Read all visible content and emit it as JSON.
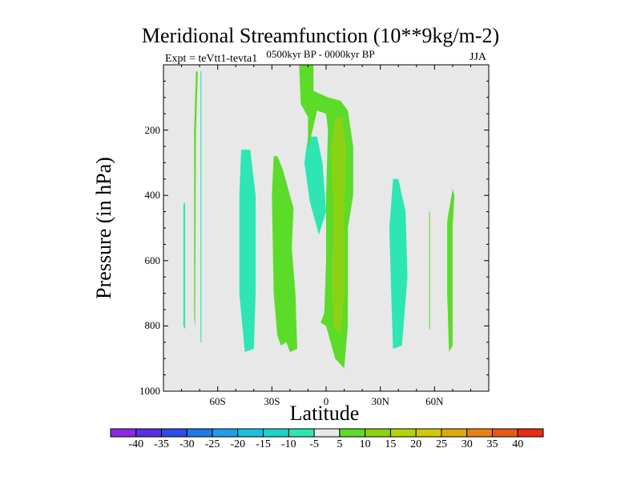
{
  "chart_data": {
    "type": "contour",
    "title": "Meridional Streamfunction (10**9kg/m-2)",
    "subtitle": "0500kyr BP - 0000kyr BP",
    "left_string": "Expt = teVtt1-tevta1",
    "right_string": "JJA",
    "xlabel": "Latitude",
    "ylabel": "Pressure (in hPa)",
    "xlim": [
      -90,
      90
    ],
    "ylim": [
      1000,
      0
    ],
    "x_ticks": [
      {
        "value": -60,
        "label": "60S"
      },
      {
        "value": -30,
        "label": "30S"
      },
      {
        "value": 0,
        "label": "0"
      },
      {
        "value": 30,
        "label": "30N"
      },
      {
        "value": 60,
        "label": "60N"
      }
    ],
    "y_ticks": [
      {
        "value": 200,
        "label": "200"
      },
      {
        "value": 400,
        "label": "400"
      },
      {
        "value": 600,
        "label": "600"
      },
      {
        "value": 800,
        "label": "800"
      },
      {
        "value": 1000,
        "label": "1000"
      }
    ],
    "background_level": "-5 to 5",
    "colorbar": {
      "labels": [
        "-40",
        "-35",
        "-30",
        "-25",
        "-20",
        "-15",
        "-10",
        "-5",
        "5",
        "10",
        "15",
        "20",
        "25",
        "30",
        "35",
        "40"
      ],
      "colors": [
        "#8a2be2",
        "#5a2ee0",
        "#2e4ce6",
        "#1e78e6",
        "#1e9ee6",
        "#1ebee0",
        "#1ed2c8",
        "#2ee6b4",
        "#e8e8e8",
        "#5adc28",
        "#8cd214",
        "#b4d20a",
        "#d2c80a",
        "#dcaa0a",
        "#e68214",
        "#e65a14",
        "#e62d14"
      ]
    },
    "regions": [
      {
        "id": "sh-polar-neg",
        "level": -10,
        "color": "#2ee6b4",
        "points": [
          [
            -79,
            430
          ],
          [
            -79,
            800
          ],
          [
            -78,
            810
          ],
          [
            -78,
            420
          ]
        ]
      },
      {
        "id": "sh-line-pos",
        "level": 5,
        "color": "#5adc28",
        "points": [
          [
            -72,
            20
          ],
          [
            -73,
            200
          ],
          [
            -73,
            780
          ],
          [
            -72.5,
            800
          ],
          [
            -72,
            200
          ],
          [
            -71,
            20
          ]
        ]
      },
      {
        "id": "sh-thin-neg",
        "level": -10,
        "color": "#2ee6b4",
        "points": [
          [
            -69.5,
            20
          ],
          [
            -69.5,
            850
          ],
          [
            -69,
            850
          ],
          [
            -69,
            20
          ]
        ]
      },
      {
        "id": "sh-mid-neg",
        "level": -10,
        "color": "#2ee6b4",
        "points": [
          [
            -47,
            260
          ],
          [
            -48,
            400
          ],
          [
            -48,
            700
          ],
          [
            -45,
            880
          ],
          [
            -40,
            870
          ],
          [
            -39,
            700
          ],
          [
            -39,
            400
          ],
          [
            -42,
            260
          ]
        ]
      },
      {
        "id": "sh-sub-pos",
        "level": 5,
        "color": "#5adc28",
        "points": [
          [
            -29,
            280
          ],
          [
            -30,
            400
          ],
          [
            -29,
            700
          ],
          [
            -27,
            830
          ],
          [
            -25,
            860
          ],
          [
            -22,
            850
          ],
          [
            -20,
            880
          ],
          [
            -16,
            870
          ],
          [
            -17,
            700
          ],
          [
            -19,
            560
          ],
          [
            -18,
            440
          ],
          [
            -24,
            320
          ],
          [
            -27,
            280
          ]
        ]
      },
      {
        "id": "sh-trop-neg",
        "level": -10,
        "color": "#2ee6b4",
        "points": [
          [
            -10,
            220
          ],
          [
            -12,
            300
          ],
          [
            -9,
            420
          ],
          [
            -4,
            520
          ],
          [
            0,
            450
          ],
          [
            -2,
            300
          ],
          [
            -5,
            220
          ]
        ]
      },
      {
        "id": "eq-pos",
        "level": 5,
        "color": "#5adc28",
        "points": [
          [
            -15,
            -10
          ],
          [
            -14,
            120
          ],
          [
            -10,
            160
          ],
          [
            -10,
            260
          ],
          [
            -5,
            140
          ],
          [
            0,
            150
          ],
          [
            1,
            200
          ],
          [
            0,
            400
          ],
          [
            0,
            600
          ],
          [
            -1,
            760
          ],
          [
            -3,
            790
          ],
          [
            0,
            800
          ],
          [
            5,
            900
          ],
          [
            10,
            930
          ],
          [
            12,
            800
          ],
          [
            12,
            500
          ],
          [
            15,
            400
          ],
          [
            15,
            250
          ],
          [
            12,
            140
          ],
          [
            8,
            110
          ],
          [
            1,
            100
          ],
          [
            -7,
            80
          ],
          [
            -7,
            -10
          ]
        ]
      },
      {
        "id": "eq-core",
        "level": 10,
        "color": "#8cd214",
        "points": [
          [
            5,
            160
          ],
          [
            3,
            250
          ],
          [
            4,
            500
          ],
          [
            3,
            650
          ],
          [
            4,
            800
          ],
          [
            8,
            830
          ],
          [
            10,
            700
          ],
          [
            10,
            450
          ],
          [
            11,
            250
          ],
          [
            9,
            160
          ]
        ]
      },
      {
        "id": "nh-sub-neg",
        "level": -10,
        "color": "#2ee6b4",
        "points": [
          [
            37,
            350
          ],
          [
            35,
            500
          ],
          [
            36,
            700
          ],
          [
            37,
            870
          ],
          [
            42,
            860
          ],
          [
            45,
            650
          ],
          [
            44,
            450
          ],
          [
            40,
            350
          ]
        ]
      },
      {
        "id": "nh-thin-pos",
        "level": 5,
        "color": "#5adc28",
        "points": [
          [
            57,
            450
          ],
          [
            57,
            810
          ],
          [
            57.5,
            810
          ],
          [
            57.5,
            450
          ]
        ]
      },
      {
        "id": "nh-high-pos",
        "level": 5,
        "color": "#5adc28",
        "points": [
          [
            70,
            380
          ],
          [
            67,
            480
          ],
          [
            67,
            700
          ],
          [
            68,
            880
          ],
          [
            70,
            860
          ],
          [
            70,
            500
          ],
          [
            71,
            400
          ]
        ]
      }
    ]
  }
}
